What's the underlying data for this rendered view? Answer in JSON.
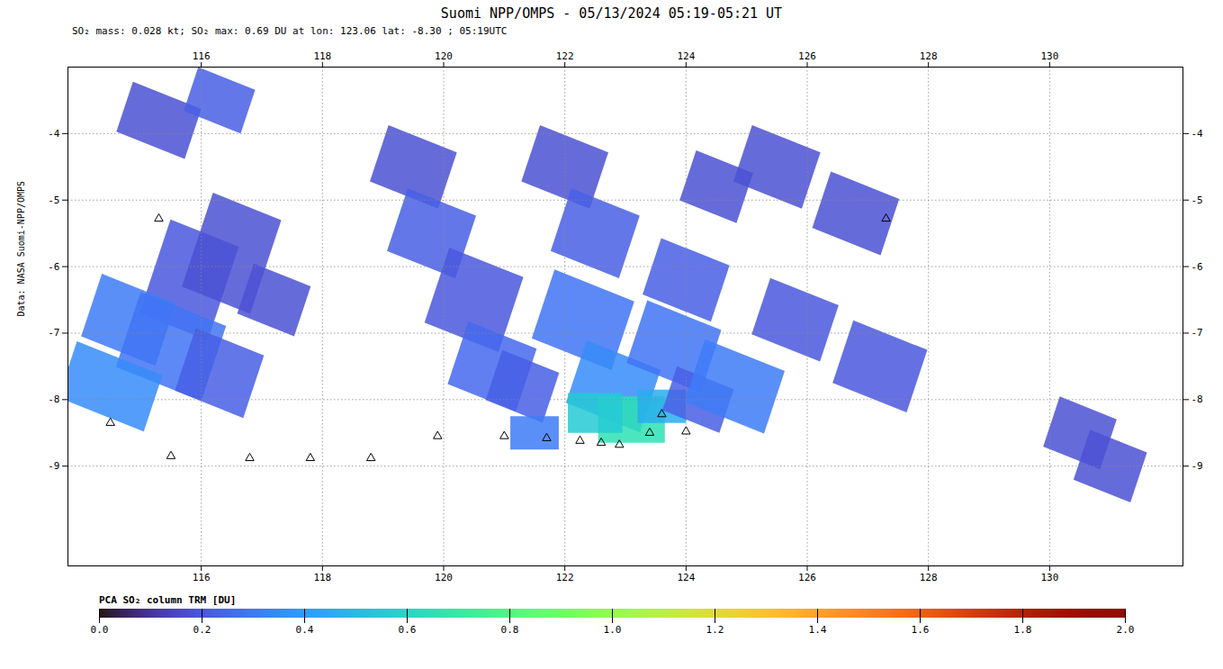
{
  "chart_data": {
    "type": "map",
    "title": "Suomi NPP/OMPS - 05/13/2024 05:19-05:21 UT",
    "subtitle": "SO₂ mass: 0.028 kt; SO₂ max: 0.69 DU at lon: 123.06 lat: -8.30 ; 05:19UTC",
    "annotation": "Data: NASA Suomi-NPP/OMPS",
    "xlim": [
      113.8,
      132.2
    ],
    "ylim": [
      -10.5,
      -3.0
    ],
    "xticks": [
      116,
      118,
      120,
      122,
      124,
      126,
      128,
      130
    ],
    "yticks": [
      -4,
      -5,
      -6,
      -7,
      -8,
      -9
    ],
    "grid": true,
    "marker": "triangle",
    "colorbar": {
      "label": "PCA SO₂ column TRM [DU]",
      "range": [
        0,
        2
      ],
      "ticks": [
        {
          "value": 0,
          "label": "0.0"
        },
        0.2,
        0.4,
        0.6,
        0.8,
        {
          "value": 1,
          "label": "1.0"
        },
        1.2,
        1.4,
        1.6,
        1.8,
        {
          "value": 2,
          "label": "2.0"
        }
      ]
    },
    "patches": [
      {
        "x": 115.3,
        "y": -3.8,
        "w": 1.2,
        "h": 0.8,
        "value": 0.18,
        "angle": -20
      },
      {
        "x": 116.3,
        "y": -3.5,
        "w": 1.0,
        "h": 0.7,
        "value": 0.22,
        "angle": -20
      },
      {
        "x": 115.8,
        "y": -6.2,
        "w": 1.2,
        "h": 1.5,
        "value": 0.2,
        "angle": -20
      },
      {
        "x": 116.5,
        "y": -5.8,
        "w": 1.2,
        "h": 1.5,
        "value": 0.18,
        "angle": -20
      },
      {
        "x": 114.8,
        "y": -6.8,
        "w": 1.3,
        "h": 1.0,
        "value": 0.3,
        "angle": -20
      },
      {
        "x": 115.5,
        "y": -7.2,
        "w": 1.5,
        "h": 1.2,
        "value": 0.28,
        "angle": -20
      },
      {
        "x": 116.3,
        "y": -7.6,
        "w": 1.2,
        "h": 1.0,
        "value": 0.22,
        "angle": -20
      },
      {
        "x": 114.5,
        "y": -7.8,
        "w": 1.5,
        "h": 0.9,
        "value": 0.35,
        "angle": -20
      },
      {
        "x": 117.2,
        "y": -6.5,
        "w": 1.0,
        "h": 0.8,
        "value": 0.18,
        "angle": -20
      },
      {
        "x": 119.5,
        "y": -4.5,
        "w": 1.2,
        "h": 0.9,
        "value": 0.18,
        "angle": -20
      },
      {
        "x": 119.8,
        "y": -5.5,
        "w": 1.2,
        "h": 1.0,
        "value": 0.22,
        "angle": -20
      },
      {
        "x": 120.5,
        "y": -6.5,
        "w": 1.3,
        "h": 1.2,
        "value": 0.2,
        "angle": -20
      },
      {
        "x": 120.8,
        "y": -7.5,
        "w": 1.2,
        "h": 1.0,
        "value": 0.25,
        "angle": -20
      },
      {
        "x": 121.3,
        "y": -7.8,
        "w": 1.0,
        "h": 0.8,
        "value": 0.22,
        "angle": -20
      },
      {
        "x": 122.0,
        "y": -4.5,
        "w": 1.2,
        "h": 0.9,
        "value": 0.18,
        "angle": -20
      },
      {
        "x": 122.5,
        "y": -5.5,
        "w": 1.2,
        "h": 1.0,
        "value": 0.22,
        "angle": -20
      },
      {
        "x": 122.3,
        "y": -6.8,
        "w": 1.4,
        "h": 1.1,
        "value": 0.28,
        "angle": -20
      },
      {
        "x": 122.8,
        "y": -7.8,
        "w": 1.3,
        "h": 1.0,
        "value": 0.35,
        "angle": -20
      },
      {
        "x": 123.1,
        "y": -8.3,
        "w": 1.1,
        "h": 0.7,
        "value": 0.65,
        "angle": 0
      },
      {
        "x": 122.5,
        "y": -8.2,
        "w": 0.9,
        "h": 0.6,
        "value": 0.55,
        "angle": 0
      },
      {
        "x": 123.6,
        "y": -8.1,
        "w": 0.8,
        "h": 0.5,
        "value": 0.45,
        "angle": 0
      },
      {
        "x": 121.5,
        "y": -8.5,
        "w": 0.8,
        "h": 0.5,
        "value": 0.3,
        "angle": 0
      },
      {
        "x": 124.5,
        "y": -4.8,
        "w": 1.0,
        "h": 0.8,
        "value": 0.18,
        "angle": -20
      },
      {
        "x": 124.0,
        "y": -6.2,
        "w": 1.2,
        "h": 0.9,
        "value": 0.22,
        "angle": -20
      },
      {
        "x": 123.8,
        "y": -7.2,
        "w": 1.3,
        "h": 1.0,
        "value": 0.28,
        "angle": -20
      },
      {
        "x": 124.2,
        "y": -8.0,
        "w": 1.0,
        "h": 0.7,
        "value": 0.22,
        "angle": -20
      },
      {
        "x": 125.5,
        "y": -4.5,
        "w": 1.2,
        "h": 0.9,
        "value": 0.18,
        "angle": -20
      },
      {
        "x": 125.8,
        "y": -6.8,
        "w": 1.2,
        "h": 0.9,
        "value": 0.2,
        "angle": -20
      },
      {
        "x": 124.8,
        "y": -7.8,
        "w": 1.4,
        "h": 1.0,
        "value": 0.3,
        "angle": -20
      },
      {
        "x": 126.8,
        "y": -5.2,
        "w": 1.2,
        "h": 0.9,
        "value": 0.18,
        "angle": -20
      },
      {
        "x": 127.2,
        "y": -7.5,
        "w": 1.3,
        "h": 1.0,
        "value": 0.2,
        "angle": -20
      },
      {
        "x": 130.5,
        "y": -8.5,
        "w": 1.0,
        "h": 0.8,
        "value": 0.18,
        "angle": -20
      },
      {
        "x": 131.0,
        "y": -9.0,
        "w": 1.0,
        "h": 0.8,
        "value": 0.18,
        "angle": -20
      }
    ],
    "volcanoes": {
      "x": [
        114.5,
        115.5,
        116.8,
        117.8,
        118.8,
        119.9,
        121.0,
        121.7,
        122.25,
        122.6,
        122.9,
        123.4,
        124.0,
        127.3,
        115.3,
        123.6
      ],
      "y": [
        -8.35,
        -8.85,
        -8.88,
        -8.88,
        -8.88,
        -8.55,
        -8.55,
        -8.58,
        -8.62,
        -8.65,
        -8.68,
        -8.5,
        -8.48,
        -5.28,
        -5.28,
        -8.22
      ]
    }
  }
}
